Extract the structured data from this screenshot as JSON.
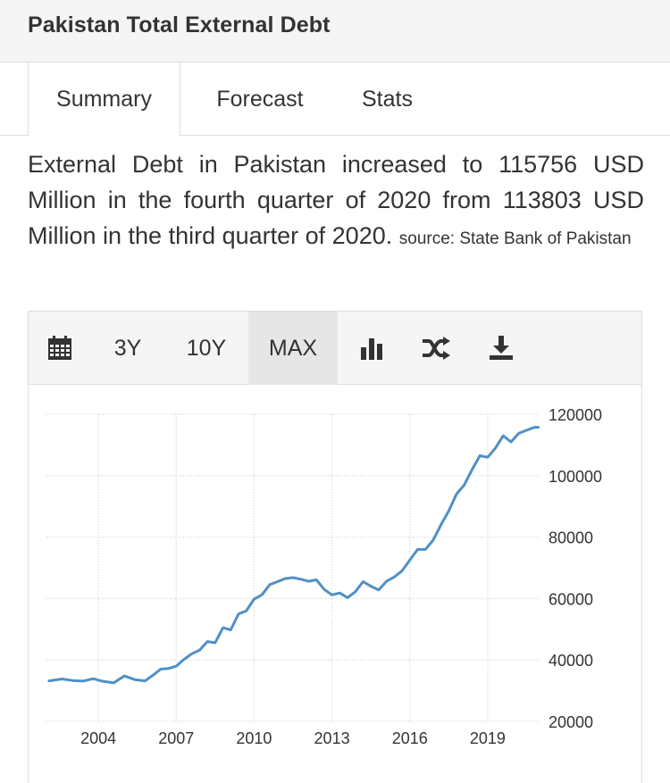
{
  "header": {
    "title": "Pakistan Total External Debt"
  },
  "tabs": [
    {
      "label": "Summary"
    },
    {
      "label": "Forecast"
    },
    {
      "label": "Stats"
    }
  ],
  "summary": {
    "text": "External Debt in Pakistan increased to 115756 USD Million in the fourth quarter of 2020 from 113803 USD Million in the third quarter of 2020.",
    "source": "source: State Bank of Pakistan"
  },
  "toolbar": {
    "calendar_icon": "calendar-icon",
    "range_3y": "3Y",
    "range_10y": "10Y",
    "range_max": "MAX",
    "selected_range": "MAX",
    "bar_chart_icon": "bar-chart-icon",
    "shuffle_icon": "shuffle-icon",
    "download_icon": "download-icon"
  },
  "colors": {
    "line": "#4f90c6",
    "grid": "#cccccc",
    "panel": "#f5f5f5"
  },
  "chart_data": {
    "type": "line",
    "title": "",
    "xlabel": "",
    "ylabel": "",
    "x_ticks": [
      "2004",
      "2007",
      "2010",
      "2013",
      "2016",
      "2019"
    ],
    "y_ticks": [
      "120000",
      "100000",
      "80000",
      "60000",
      "40000",
      "20000"
    ],
    "ylim": [
      20000,
      120000
    ],
    "xlim": [
      2002.0,
      2021.0
    ],
    "grid": true,
    "series": [
      {
        "name": "",
        "x": [
          2002.1,
          2002.6,
          2003.0,
          2003.4,
          2003.8,
          2004.2,
          2004.6,
          2005.0,
          2005.4,
          2005.8,
          2006.1,
          2006.4,
          2006.7,
          2007.0,
          2007.3,
          2007.6,
          2007.9,
          2008.2,
          2008.5,
          2008.8,
          2009.1,
          2009.4,
          2009.7,
          2010.0,
          2010.3,
          2010.6,
          2010.9,
          2011.2,
          2011.5,
          2011.8,
          2012.1,
          2012.4,
          2012.7,
          2013.0,
          2013.3,
          2013.6,
          2013.9,
          2014.2,
          2014.5,
          2014.8,
          2015.1,
          2015.4,
          2015.7,
          2016.0,
          2016.3,
          2016.6,
          2016.9,
          2017.2,
          2017.5,
          2017.8,
          2018.1,
          2018.4,
          2018.7,
          2019.0,
          2019.3,
          2019.6,
          2019.9,
          2020.2,
          2020.5,
          2020.8,
          2020.95
        ],
        "values": [
          33200,
          33800,
          33300,
          33100,
          33900,
          33000,
          32600,
          34800,
          33600,
          33200,
          35000,
          37000,
          37200,
          38000,
          40200,
          42000,
          43200,
          46000,
          45600,
          50500,
          49800,
          55000,
          56000,
          59800,
          61200,
          64500,
          65500,
          66500,
          66800,
          66300,
          65600,
          66100,
          63000,
          61200,
          61800,
          60300,
          62200,
          65500,
          64000,
          62800,
          65600,
          67000,
          69000,
          72500,
          76000,
          76000,
          79000,
          84000,
          88500,
          94000,
          97000,
          102000,
          106500,
          106000,
          109000,
          113000,
          111000,
          113800,
          114800,
          115756,
          115756
        ]
      }
    ]
  }
}
